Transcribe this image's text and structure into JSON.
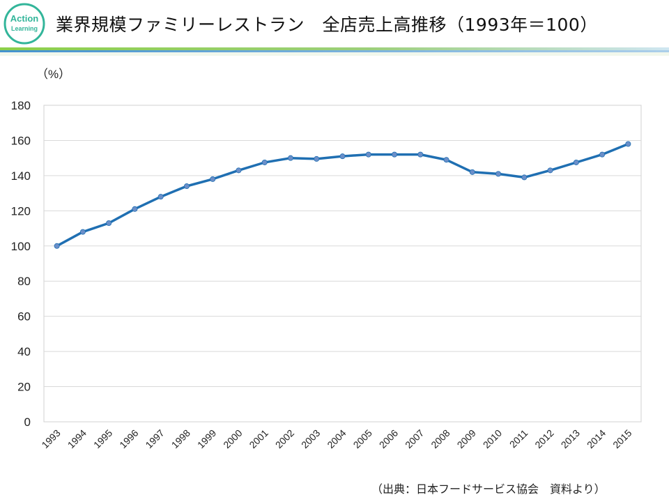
{
  "slide": {
    "title": "業界規模ファミリーレストラン　全店売上高推移（1993年＝100）",
    "source": "（出典：日本フードサービス協会　資料より）",
    "logo": {
      "line1": "Action",
      "line2": "Learning"
    }
  },
  "colors": {
    "line": "#1f6fb2",
    "marker": "#6b8fc9",
    "logo": "#33b59a",
    "rule_green": "#8ccf4a",
    "rule_blue": "#2e86c9"
  },
  "chart_data": {
    "type": "line",
    "title": "",
    "ylabel": "（%）",
    "xlabel": "",
    "ylim": [
      0,
      180
    ],
    "yticks": [
      0,
      20,
      40,
      60,
      80,
      100,
      120,
      140,
      160,
      180
    ],
    "grid": true,
    "legend": "none",
    "categories": [
      "1993",
      "1994",
      "1995",
      "1996",
      "1997",
      "1998",
      "1999",
      "2000",
      "2001",
      "2002",
      "2003",
      "2004",
      "2005",
      "2006",
      "2007",
      "2008",
      "2009",
      "2010",
      "2011",
      "2012",
      "2013",
      "2014",
      "2015"
    ],
    "series": [
      {
        "name": "全店売上高",
        "values": [
          100,
          108,
          113,
          121,
          128,
          134,
          138,
          143,
          147.5,
          150,
          149.5,
          151,
          152,
          152,
          152,
          149,
          142,
          141,
          139,
          143,
          147.5,
          152,
          158
        ]
      }
    ]
  }
}
